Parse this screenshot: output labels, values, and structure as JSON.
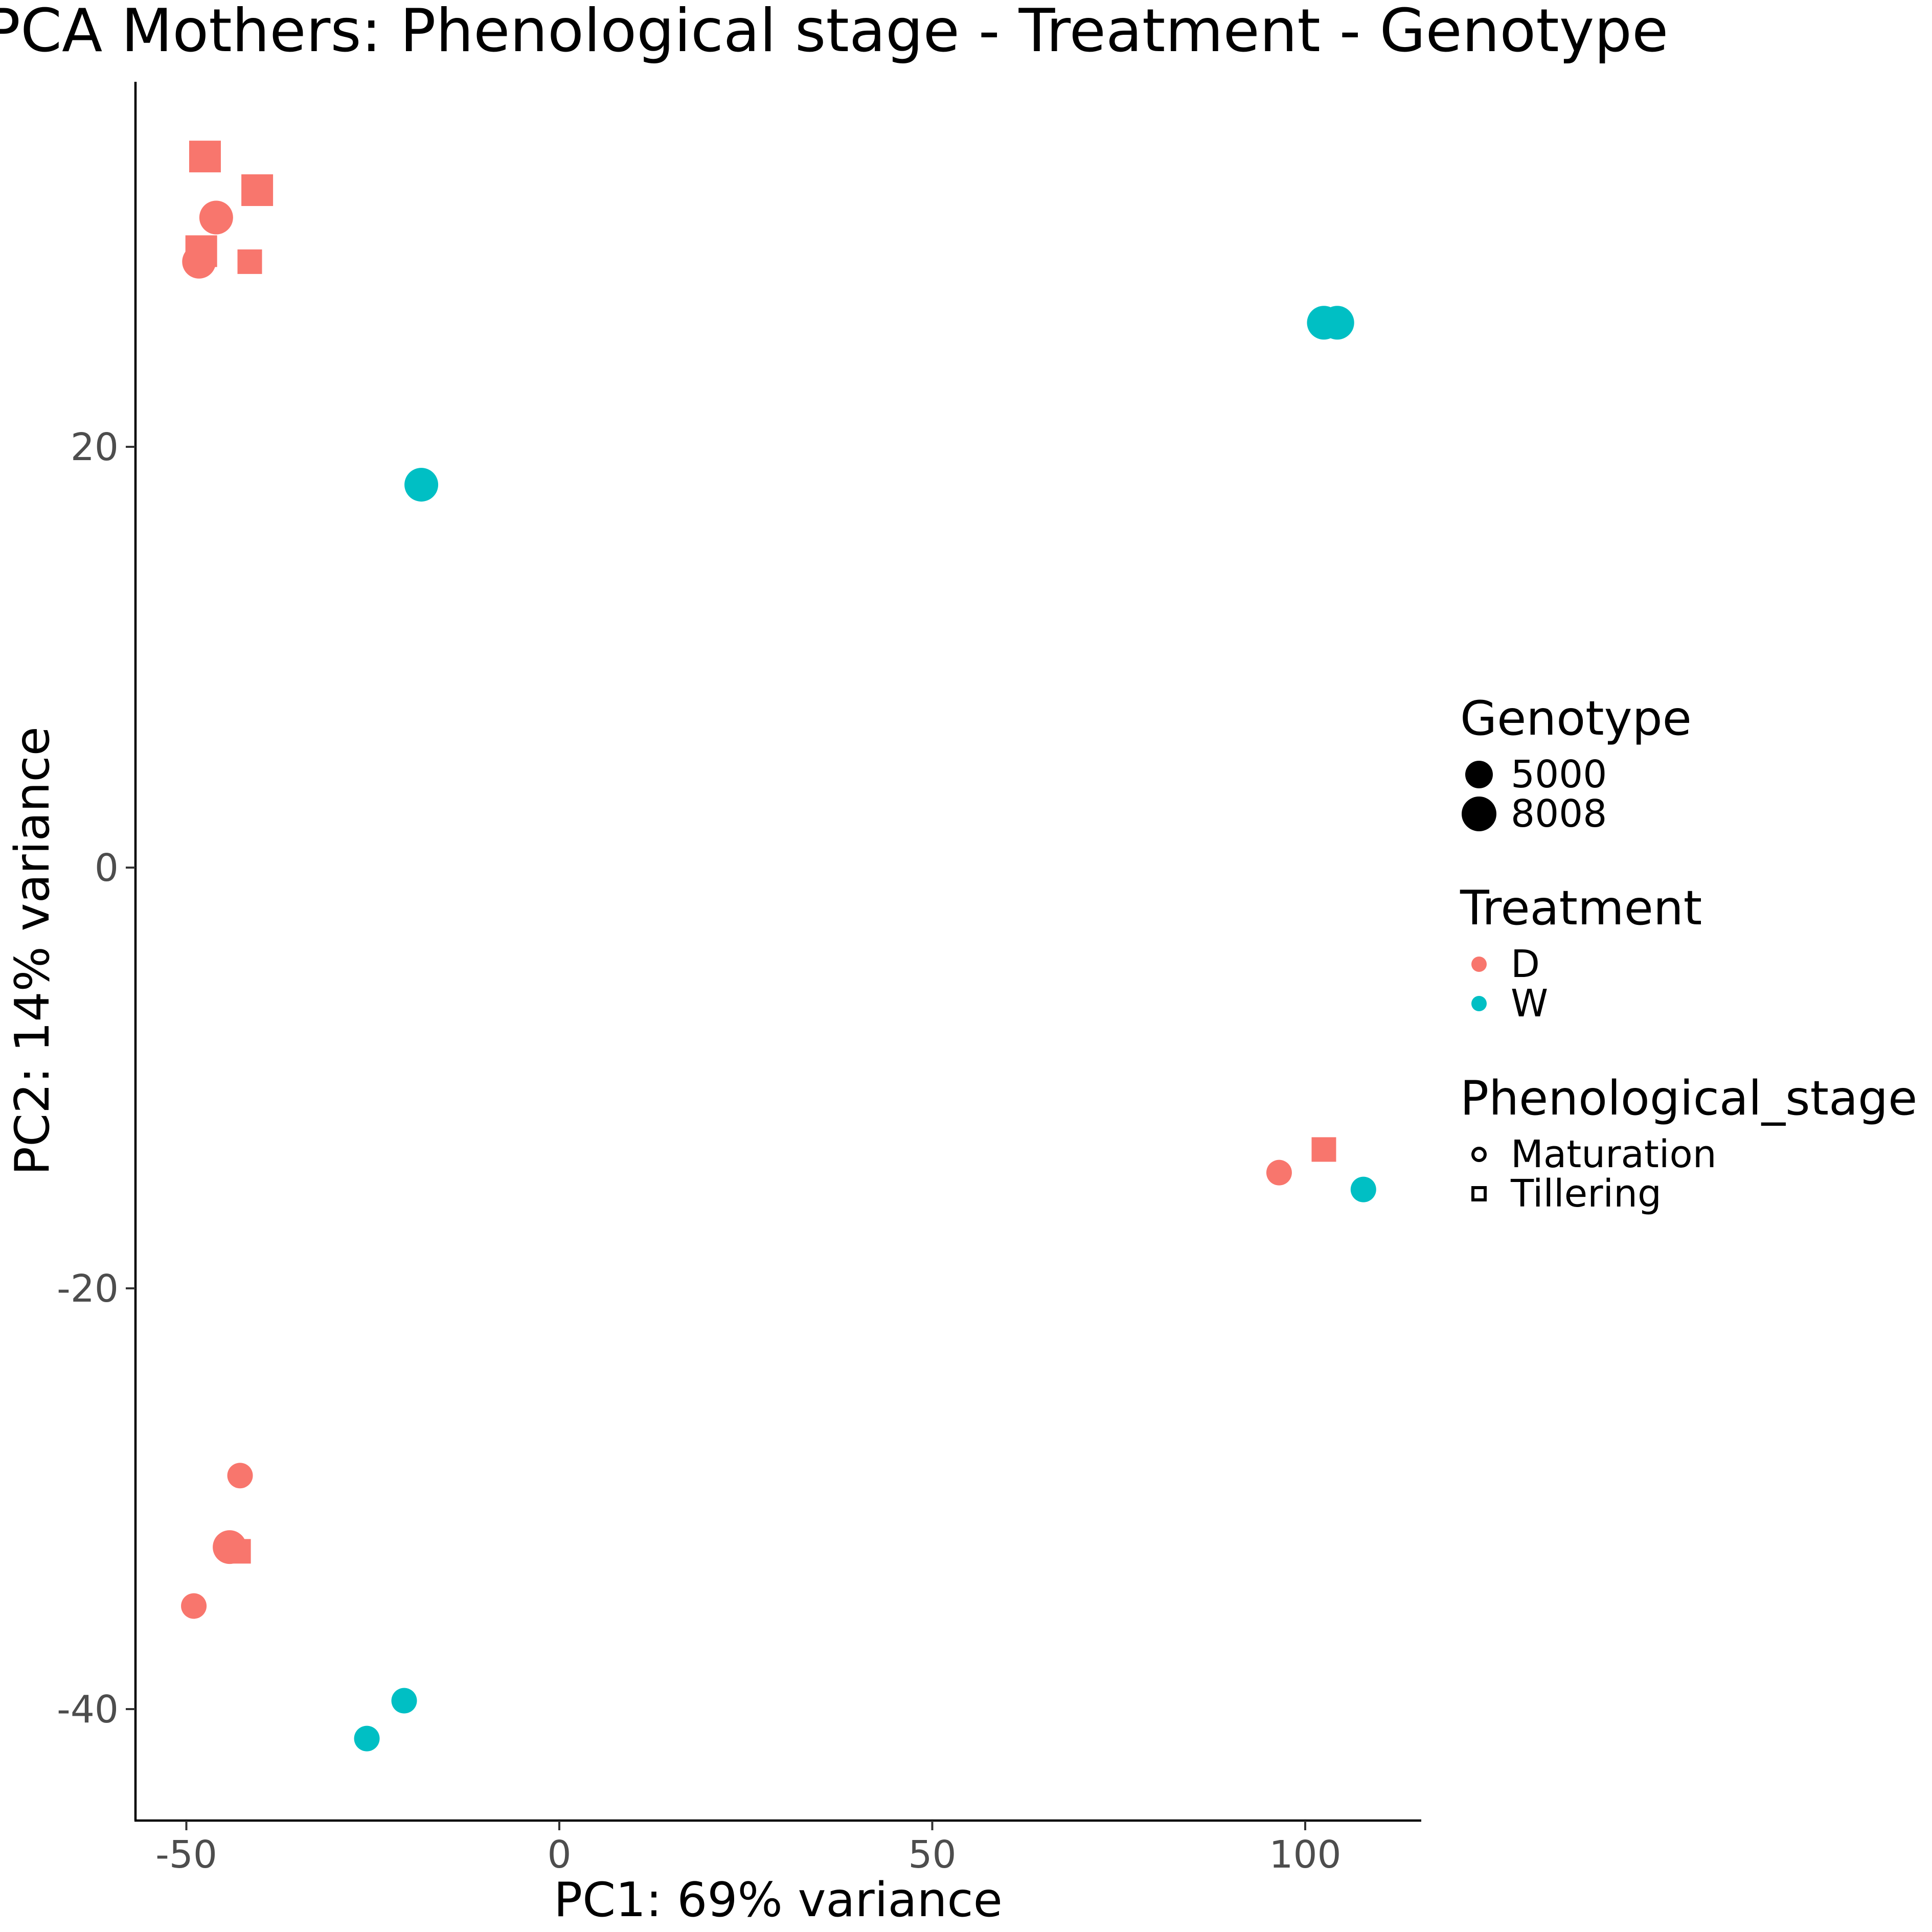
{
  "chart_data": {
    "type": "scatter",
    "title": "PCA Mothers: Phenological stage - Treatment - Genotype",
    "xlabel": "PC1: 69% variance",
    "ylabel": "PC2: 14% variance",
    "xlim": [
      -57,
      115
    ],
    "ylim": [
      -45.2,
      37.5
    ],
    "xticks": [
      -50,
      0,
      50,
      100
    ],
    "yticks": [
      -40,
      -20,
      0,
      20
    ],
    "grid": false,
    "legend_position": "right",
    "colors": {
      "D": "#F8766D",
      "W": "#00BFC4"
    },
    "legends": [
      {
        "title": "Genotype",
        "aesthetic": "size",
        "entries": [
          {
            "label": "5000"
          },
          {
            "label": "8008"
          }
        ]
      },
      {
        "title": "Treatment",
        "aesthetic": "color",
        "entries": [
          {
            "label": "D",
            "color": "#F8766D"
          },
          {
            "label": "W",
            "color": "#00BFC4"
          }
        ]
      },
      {
        "title": "Phenological_stage",
        "aesthetic": "shape",
        "entries": [
          {
            "label": "Maturation",
            "shape": "circle"
          },
          {
            "label": "Tillering",
            "shape": "square"
          }
        ]
      }
    ],
    "points": [
      {
        "x": -47.5,
        "y": 33.8,
        "treatment": "D",
        "genotype": "8008",
        "stage": "Tillering"
      },
      {
        "x": -40.5,
        "y": 32.2,
        "treatment": "D",
        "genotype": "8008",
        "stage": "Tillering"
      },
      {
        "x": -46.0,
        "y": 30.9,
        "treatment": "D",
        "genotype": "8008",
        "stage": "Maturation"
      },
      {
        "x": -48.0,
        "y": 29.3,
        "treatment": "D",
        "genotype": "8008",
        "stage": "Tillering"
      },
      {
        "x": -48.3,
        "y": 28.8,
        "treatment": "D",
        "genotype": "8008",
        "stage": "Maturation"
      },
      {
        "x": -41.5,
        "y": 28.8,
        "treatment": "D",
        "genotype": "5000",
        "stage": "Tillering"
      },
      {
        "x": 102.5,
        "y": 25.9,
        "treatment": "W",
        "genotype": "8008",
        "stage": "Maturation"
      },
      {
        "x": 104.3,
        "y": 25.9,
        "treatment": "W",
        "genotype": "8008",
        "stage": "Maturation"
      },
      {
        "x": -18.5,
        "y": 18.2,
        "treatment": "W",
        "genotype": "8008",
        "stage": "Maturation"
      },
      {
        "x": 102.5,
        "y": -13.4,
        "treatment": "D",
        "genotype": "5000",
        "stage": "Tillering"
      },
      {
        "x": 96.5,
        "y": -14.5,
        "treatment": "D",
        "genotype": "5000",
        "stage": "Maturation"
      },
      {
        "x": 107.8,
        "y": -15.3,
        "treatment": "W",
        "genotype": "5000",
        "stage": "Maturation"
      },
      {
        "x": -42.8,
        "y": -28.9,
        "treatment": "D",
        "genotype": "5000",
        "stage": "Maturation"
      },
      {
        "x": -43.0,
        "y": -32.5,
        "treatment": "D",
        "genotype": "5000",
        "stage": "Tillering"
      },
      {
        "x": -44.2,
        "y": -32.3,
        "treatment": "D",
        "genotype": "8008",
        "stage": "Maturation"
      },
      {
        "x": -49.0,
        "y": -35.1,
        "treatment": "D",
        "genotype": "5000",
        "stage": "Maturation"
      },
      {
        "x": -20.8,
        "y": -39.6,
        "treatment": "W",
        "genotype": "5000",
        "stage": "Maturation"
      },
      {
        "x": -25.8,
        "y": -41.4,
        "treatment": "W",
        "genotype": "5000",
        "stage": "Maturation"
      }
    ]
  }
}
